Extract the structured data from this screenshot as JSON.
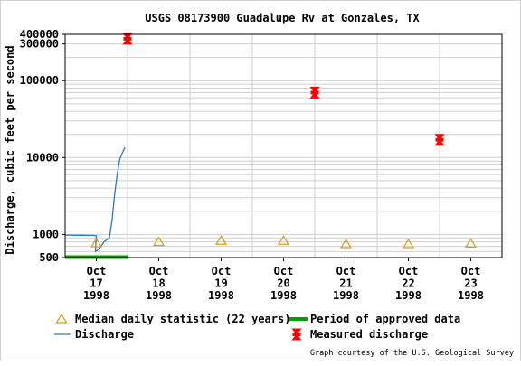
{
  "chart_data": {
    "type": "line",
    "title": "USGS 08173900 Guadalupe Rv at Gonzales, TX",
    "ylabel": "Discharge, cubic feet per second",
    "xlabel": "",
    "y_scale": "log",
    "ylim": [
      500,
      400000
    ],
    "xlim": [
      "1998-10-16 12:00",
      "1998-10-23 12:00"
    ],
    "y_ticks": [
      {
        "value": 500,
        "label": "500"
      },
      {
        "value": 1000,
        "label": "1000"
      },
      {
        "value": 10000,
        "label": "10000"
      },
      {
        "value": 100000,
        "label": "100000"
      },
      {
        "value": 300000,
        "label": "300000"
      },
      {
        "value": 400000,
        "label": "400000"
      }
    ],
    "x_ticks": [
      {
        "value": "1998-10-17",
        "lines": [
          "Oct",
          "17",
          "1998"
        ]
      },
      {
        "value": "1998-10-18",
        "lines": [
          "Oct",
          "18",
          "1998"
        ]
      },
      {
        "value": "1998-10-19",
        "lines": [
          "Oct",
          "19",
          "1998"
        ]
      },
      {
        "value": "1998-10-20",
        "lines": [
          "Oct",
          "20",
          "1998"
        ]
      },
      {
        "value": "1998-10-21",
        "lines": [
          "Oct",
          "21",
          "1998"
        ]
      },
      {
        "value": "1998-10-22",
        "lines": [
          "Oct",
          "22",
          "1998"
        ]
      },
      {
        "value": "1998-10-23",
        "lines": [
          "Oct",
          "23",
          "1998"
        ]
      }
    ],
    "grid": true,
    "legend": "bottom",
    "series": [
      {
        "name": "Discharge",
        "kind": "line",
        "color": "#2b7bba",
        "points": [
          {
            "x": "1998-10-16 12:00",
            "y": 980
          },
          {
            "x": "1998-10-16 18:00",
            "y": 975
          },
          {
            "x": "1998-10-16 23:00",
            "y": 970
          },
          {
            "x": "1998-10-17 00:00",
            "y": 960
          },
          {
            "x": "1998-10-16 23:40",
            "y": 600
          },
          {
            "x": "1998-10-17 01:00",
            "y": 640
          },
          {
            "x": "1998-10-17 02:00",
            "y": 720
          },
          {
            "x": "1998-10-17 03:00",
            "y": 800
          },
          {
            "x": "1998-10-17 04:00",
            "y": 850
          },
          {
            "x": "1998-10-17 05:00",
            "y": 900
          },
          {
            "x": "1998-10-17 06:00",
            "y": 1500
          },
          {
            "x": "1998-10-17 07:00",
            "y": 3200
          },
          {
            "x": "1998-10-17 08:00",
            "y": 6000
          },
          {
            "x": "1998-10-17 09:00",
            "y": 9500
          },
          {
            "x": "1998-10-17 10:00",
            "y": 11500
          },
          {
            "x": "1998-10-17 11:00",
            "y": 13500
          }
        ]
      },
      {
        "name": "Median daily statistic (22 years)",
        "kind": "marker",
        "marker": "triangle",
        "color": "#d4a017",
        "points": [
          {
            "x": "1998-10-17",
            "y": 770
          },
          {
            "x": "1998-10-18",
            "y": 800
          },
          {
            "x": "1998-10-19",
            "y": 830
          },
          {
            "x": "1998-10-20",
            "y": 830
          },
          {
            "x": "1998-10-21",
            "y": 750
          },
          {
            "x": "1998-10-22",
            "y": 750
          },
          {
            "x": "1998-10-23",
            "y": 760
          }
        ]
      },
      {
        "name": "Measured discharge",
        "kind": "marker",
        "marker": "bowtie",
        "color": "#ff0000",
        "points": [
          {
            "x": "1998-10-17 12:00",
            "y": 350000
          },
          {
            "x": "1998-10-20 12:00",
            "y": 70000
          },
          {
            "x": "1998-10-22 12:00",
            "y": 17000
          }
        ]
      },
      {
        "name": "Period of approved data",
        "kind": "band",
        "color": "#00a000",
        "start": "1998-10-16 12:00",
        "end": "1998-10-17 12:00"
      }
    ],
    "legend_entries": [
      "Median daily statistic (22 years)",
      "Period of approved data",
      "Discharge",
      "Measured discharge"
    ],
    "credit": "Graph courtesy of the U.S. Geological Survey"
  }
}
